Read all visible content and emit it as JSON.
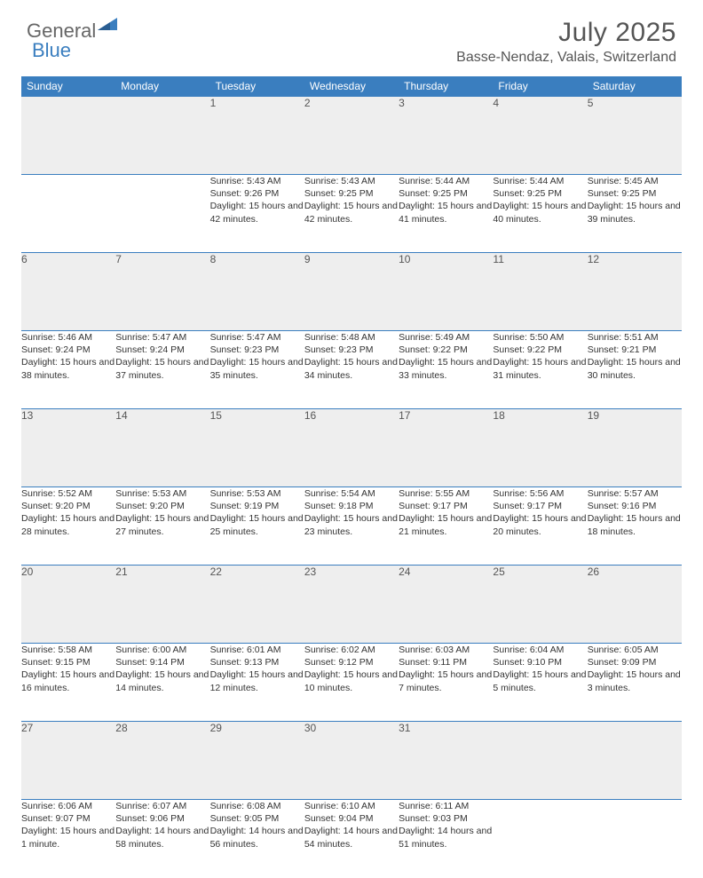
{
  "brand": {
    "part1": "General",
    "part2": "Blue"
  },
  "header": {
    "title": "July 2025",
    "location": "Basse-Nendaz, Valais, Switzerland"
  },
  "colors": {
    "accent": "#3a7ebf",
    "header_stripe": "#eeeeee",
    "text": "#333333",
    "title_text": "#555555",
    "bg": "#ffffff"
  },
  "calendar": {
    "day_names": [
      "Sunday",
      "Monday",
      "Tuesday",
      "Wednesday",
      "Thursday",
      "Friday",
      "Saturday"
    ],
    "weeks": [
      [
        null,
        null,
        {
          "n": "1",
          "sunrise": "5:43 AM",
          "sunset": "9:26 PM",
          "daylight": "15 hours and 42 minutes."
        },
        {
          "n": "2",
          "sunrise": "5:43 AM",
          "sunset": "9:25 PM",
          "daylight": "15 hours and 42 minutes."
        },
        {
          "n": "3",
          "sunrise": "5:44 AM",
          "sunset": "9:25 PM",
          "daylight": "15 hours and 41 minutes."
        },
        {
          "n": "4",
          "sunrise": "5:44 AM",
          "sunset": "9:25 PM",
          "daylight": "15 hours and 40 minutes."
        },
        {
          "n": "5",
          "sunrise": "5:45 AM",
          "sunset": "9:25 PM",
          "daylight": "15 hours and 39 minutes."
        }
      ],
      [
        {
          "n": "6",
          "sunrise": "5:46 AM",
          "sunset": "9:24 PM",
          "daylight": "15 hours and 38 minutes."
        },
        {
          "n": "7",
          "sunrise": "5:47 AM",
          "sunset": "9:24 PM",
          "daylight": "15 hours and 37 minutes."
        },
        {
          "n": "8",
          "sunrise": "5:47 AM",
          "sunset": "9:23 PM",
          "daylight": "15 hours and 35 minutes."
        },
        {
          "n": "9",
          "sunrise": "5:48 AM",
          "sunset": "9:23 PM",
          "daylight": "15 hours and 34 minutes."
        },
        {
          "n": "10",
          "sunrise": "5:49 AM",
          "sunset": "9:22 PM",
          "daylight": "15 hours and 33 minutes."
        },
        {
          "n": "11",
          "sunrise": "5:50 AM",
          "sunset": "9:22 PM",
          "daylight": "15 hours and 31 minutes."
        },
        {
          "n": "12",
          "sunrise": "5:51 AM",
          "sunset": "9:21 PM",
          "daylight": "15 hours and 30 minutes."
        }
      ],
      [
        {
          "n": "13",
          "sunrise": "5:52 AM",
          "sunset": "9:20 PM",
          "daylight": "15 hours and 28 minutes."
        },
        {
          "n": "14",
          "sunrise": "5:53 AM",
          "sunset": "9:20 PM",
          "daylight": "15 hours and 27 minutes."
        },
        {
          "n": "15",
          "sunrise": "5:53 AM",
          "sunset": "9:19 PM",
          "daylight": "15 hours and 25 minutes."
        },
        {
          "n": "16",
          "sunrise": "5:54 AM",
          "sunset": "9:18 PM",
          "daylight": "15 hours and 23 minutes."
        },
        {
          "n": "17",
          "sunrise": "5:55 AM",
          "sunset": "9:17 PM",
          "daylight": "15 hours and 21 minutes."
        },
        {
          "n": "18",
          "sunrise": "5:56 AM",
          "sunset": "9:17 PM",
          "daylight": "15 hours and 20 minutes."
        },
        {
          "n": "19",
          "sunrise": "5:57 AM",
          "sunset": "9:16 PM",
          "daylight": "15 hours and 18 minutes."
        }
      ],
      [
        {
          "n": "20",
          "sunrise": "5:58 AM",
          "sunset": "9:15 PM",
          "daylight": "15 hours and 16 minutes."
        },
        {
          "n": "21",
          "sunrise": "6:00 AM",
          "sunset": "9:14 PM",
          "daylight": "15 hours and 14 minutes."
        },
        {
          "n": "22",
          "sunrise": "6:01 AM",
          "sunset": "9:13 PM",
          "daylight": "15 hours and 12 minutes."
        },
        {
          "n": "23",
          "sunrise": "6:02 AM",
          "sunset": "9:12 PM",
          "daylight": "15 hours and 10 minutes."
        },
        {
          "n": "24",
          "sunrise": "6:03 AM",
          "sunset": "9:11 PM",
          "daylight": "15 hours and 7 minutes."
        },
        {
          "n": "25",
          "sunrise": "6:04 AM",
          "sunset": "9:10 PM",
          "daylight": "15 hours and 5 minutes."
        },
        {
          "n": "26",
          "sunrise": "6:05 AM",
          "sunset": "9:09 PM",
          "daylight": "15 hours and 3 minutes."
        }
      ],
      [
        {
          "n": "27",
          "sunrise": "6:06 AM",
          "sunset": "9:07 PM",
          "daylight": "15 hours and 1 minute."
        },
        {
          "n": "28",
          "sunrise": "6:07 AM",
          "sunset": "9:06 PM",
          "daylight": "14 hours and 58 minutes."
        },
        {
          "n": "29",
          "sunrise": "6:08 AM",
          "sunset": "9:05 PM",
          "daylight": "14 hours and 56 minutes."
        },
        {
          "n": "30",
          "sunrise": "6:10 AM",
          "sunset": "9:04 PM",
          "daylight": "14 hours and 54 minutes."
        },
        {
          "n": "31",
          "sunrise": "6:11 AM",
          "sunset": "9:03 PM",
          "daylight": "14 hours and 51 minutes."
        },
        null,
        null
      ]
    ],
    "labels": {
      "sunrise": "Sunrise:",
      "sunset": "Sunset:",
      "daylight": "Daylight:"
    }
  }
}
